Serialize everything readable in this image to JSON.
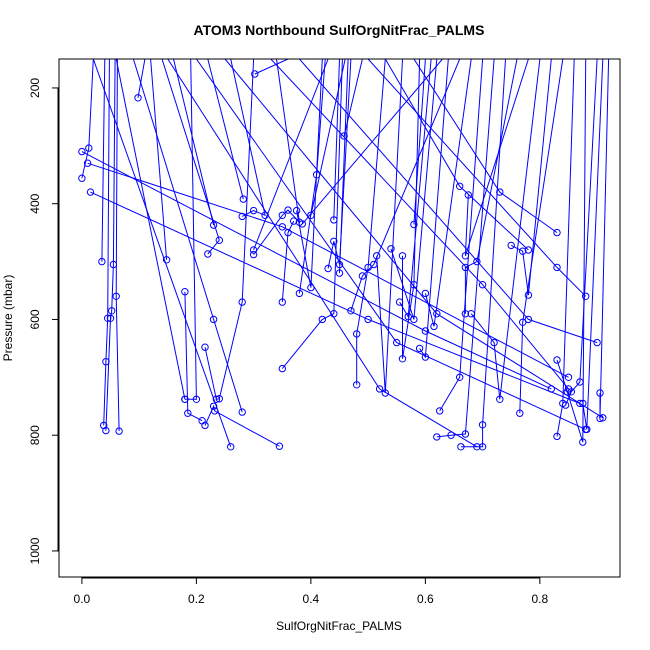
{
  "chart_data": {
    "type": "line",
    "title": "ATOM3 Northbound SulfOrgNitFrac_PALMS",
    "xlabel": "SulfOrgNitFrac_PALMS",
    "ylabel": "Pressure (mbar)",
    "xlim": [
      -0.04,
      0.94
    ],
    "ylim": [
      1045,
      150
    ],
    "y_reversed": true,
    "grid": false,
    "legend": "none",
    "x_ticks": [
      {
        "value": 0.0,
        "label": "0.0"
      },
      {
        "value": 0.2,
        "label": "0.2"
      },
      {
        "value": 0.4,
        "label": "0.4"
      },
      {
        "value": 0.6,
        "label": "0.6"
      },
      {
        "value": 0.8,
        "label": "0.8"
      }
    ],
    "y_ticks": [
      {
        "value": 200,
        "label": "200"
      },
      {
        "value": 400,
        "label": "400"
      },
      {
        "value": 600,
        "label": "600"
      },
      {
        "value": 800,
        "label": "800"
      },
      {
        "value": 1000,
        "label": "1000"
      }
    ],
    "color": "#0000ff",
    "series": [
      {
        "points": [
          [
            0.0,
            356
          ],
          [
            0.012,
            304
          ],
          [
            0.02,
            150
          ]
        ]
      },
      {
        "points": [
          [
            0.035,
            500
          ],
          [
            0.04,
            150
          ]
        ]
      },
      {
        "points": [
          [
            0.038,
            783
          ],
          [
            0.042,
            673
          ],
          [
            0.045,
            598
          ],
          [
            0.048,
            150
          ]
        ]
      },
      {
        "points": [
          [
            0.042,
            792
          ],
          [
            0.05,
            598
          ],
          [
            0.052,
            585
          ],
          [
            0.055,
            505
          ],
          [
            0.058,
            150
          ]
        ]
      },
      {
        "points": [
          [
            0.065,
            793
          ],
          [
            0.06,
            560
          ],
          [
            0.062,
            150
          ]
        ]
      },
      {
        "points": [
          [
            0.098,
            217
          ],
          [
            0.11,
            150
          ]
        ]
      },
      {
        "points": [
          [
            0.148,
            497
          ],
          [
            0.12,
            150
          ]
        ]
      },
      {
        "points": [
          [
            0.18,
            738
          ],
          [
            0.2,
            738
          ],
          [
            0.19,
            150
          ]
        ]
      },
      {
        "points": [
          [
            0.18,
            552
          ],
          [
            0.185,
            762
          ],
          [
            0.21,
            775
          ]
        ]
      },
      {
        "points": [
          [
            0.215,
            648
          ],
          [
            0.235,
            738
          ],
          [
            0.24,
            737
          ],
          [
            0.28,
            570
          ],
          [
            0.3,
            150
          ]
        ]
      },
      {
        "points": [
          [
            0.215,
            783
          ],
          [
            0.23,
            750
          ],
          [
            0.232,
            758
          ],
          [
            0.345,
            819
          ]
        ]
      },
      {
        "points": [
          [
            0.22,
            487
          ],
          [
            0.24,
            463
          ],
          [
            0.14,
            150
          ]
        ]
      },
      {
        "points": [
          [
            0.23,
            437
          ],
          [
            0.16,
            150
          ]
        ]
      },
      {
        "points": [
          [
            0.28,
            422
          ],
          [
            0.3,
            412
          ],
          [
            0.32,
            420
          ],
          [
            0.26,
            150
          ]
        ]
      },
      {
        "points": [
          [
            0.282,
            392
          ],
          [
            0.22,
            150
          ]
        ]
      },
      {
        "points": [
          [
            0.3,
            488
          ],
          [
            0.35,
            420
          ],
          [
            0.36,
            411
          ],
          [
            0.38,
            432
          ],
          [
            0.34,
            150
          ]
        ]
      },
      {
        "points": [
          [
            0.302,
            176
          ],
          [
            0.36,
            150
          ]
        ]
      },
      {
        "points": [
          [
            0.35,
            685
          ],
          [
            0.42,
            600
          ],
          [
            0.44,
            590
          ],
          [
            0.455,
            150
          ]
        ]
      },
      {
        "points": [
          [
            0.35,
            570
          ],
          [
            0.36,
            450
          ],
          [
            0.37,
            430
          ]
        ]
      },
      {
        "points": [
          [
            0.375,
            412
          ],
          [
            0.4,
            545
          ],
          [
            0.42,
            150
          ]
        ]
      },
      {
        "points": [
          [
            0.38,
            555
          ],
          [
            0.41,
            350
          ],
          [
            0.425,
            150
          ]
        ]
      },
      {
        "points": [
          [
            0.43,
            512
          ],
          [
            0.44,
            465
          ],
          [
            0.45,
            505
          ],
          [
            0.47,
            150
          ]
        ]
      },
      {
        "points": [
          [
            0.44,
            428
          ],
          [
            0.45,
            150
          ]
        ]
      },
      {
        "points": [
          [
            0.47,
            585
          ],
          [
            0.49,
            525
          ],
          [
            0.51,
            505
          ],
          [
            0.66,
            150
          ]
        ]
      },
      {
        "points": [
          [
            0.458,
            283
          ],
          [
            0.49,
            150
          ]
        ]
      },
      {
        "points": [
          [
            0.48,
            713
          ],
          [
            0.48,
            625
          ],
          [
            0.5,
            510
          ],
          [
            0.53,
            150
          ]
        ]
      },
      {
        "points": [
          [
            0.515,
            490
          ],
          [
            0.53,
            727
          ],
          [
            0.56,
            150
          ]
        ]
      },
      {
        "points": [
          [
            0.56,
            490
          ],
          [
            0.56,
            668
          ],
          [
            0.58,
            540
          ],
          [
            0.59,
            150
          ]
        ]
      },
      {
        "points": [
          [
            0.555,
            570
          ],
          [
            0.57,
            595
          ],
          [
            0.61,
            150
          ]
        ]
      },
      {
        "points": [
          [
            0.54,
            478
          ],
          [
            0.58,
            600
          ],
          [
            0.62,
            150
          ]
        ]
      },
      {
        "points": [
          [
            0.58,
            436
          ],
          [
            0.6,
            150
          ]
        ]
      },
      {
        "points": [
          [
            0.59,
            650
          ],
          [
            0.6,
            665
          ],
          [
            0.64,
            150
          ]
        ]
      },
      {
        "points": [
          [
            0.6,
            555
          ],
          [
            0.615,
            612
          ],
          [
            0.68,
            150
          ]
        ]
      },
      {
        "points": [
          [
            0.625,
            758
          ],
          [
            0.66,
            700
          ],
          [
            0.7,
            150
          ]
        ]
      },
      {
        "points": [
          [
            0.62,
            803
          ],
          [
            0.645,
            800
          ],
          [
            0.67,
            798
          ],
          [
            0.72,
            150
          ]
        ]
      },
      {
        "points": [
          [
            0.662,
            820
          ],
          [
            0.7,
            820
          ],
          [
            0.7,
            782
          ],
          [
            0.74,
            150
          ]
        ]
      },
      {
        "points": [
          [
            0.67,
            590
          ],
          [
            0.67,
            510
          ],
          [
            0.69,
            500
          ],
          [
            0.76,
            150
          ]
        ]
      },
      {
        "points": [
          [
            0.675,
            385
          ],
          [
            0.67,
            490
          ],
          [
            0.78,
            150
          ]
        ]
      },
      {
        "points": [
          [
            0.68,
            590
          ],
          [
            0.72,
            640
          ],
          [
            0.73,
            738
          ],
          [
            0.8,
            150
          ]
        ]
      },
      {
        "points": [
          [
            0.75,
            472
          ],
          [
            0.77,
            482
          ],
          [
            0.78,
            558
          ],
          [
            0.82,
            150
          ]
        ]
      },
      {
        "points": [
          [
            0.765,
            762
          ],
          [
            0.77,
            605
          ],
          [
            0.84,
            150
          ]
        ]
      },
      {
        "points": [
          [
            0.83,
            802
          ],
          [
            0.84,
            745
          ],
          [
            0.86,
            150
          ]
        ]
      },
      {
        "points": [
          [
            0.83,
            670
          ],
          [
            0.848,
            725
          ],
          [
            0.875,
            812
          ],
          [
            0.88,
            150
          ]
        ]
      },
      {
        "points": [
          [
            0.845,
            748
          ],
          [
            0.855,
            725
          ],
          [
            0.87,
            708
          ],
          [
            0.9,
            150
          ]
        ]
      },
      {
        "points": [
          [
            0.875,
            745
          ],
          [
            0.882,
            790
          ],
          [
            0.91,
            150
          ]
        ]
      },
      {
        "points": [
          [
            0.905,
            727
          ],
          [
            0.905,
            771
          ],
          [
            0.92,
            150
          ]
        ]
      },
      {
        "points": [
          [
            0.0,
            310
          ],
          [
            0.6,
            620
          ],
          [
            0.82,
            720
          ]
        ]
      },
      {
        "points": [
          [
            0.015,
            380
          ],
          [
            0.5,
            600
          ],
          [
            0.87,
            745
          ]
        ]
      },
      {
        "points": [
          [
            0.01,
            330
          ],
          [
            0.35,
            440
          ],
          [
            0.85,
            700
          ]
        ]
      },
      {
        "points": [
          [
            0.02,
            150
          ],
          [
            0.26,
            820
          ]
        ]
      },
      {
        "points": [
          [
            0.06,
            150
          ],
          [
            0.18,
            738
          ]
        ]
      },
      {
        "points": [
          [
            0.09,
            150
          ],
          [
            0.23,
            600
          ],
          [
            0.28,
            760
          ]
        ]
      },
      {
        "points": [
          [
            0.15,
            150
          ],
          [
            0.52,
            720
          ],
          [
            0.69,
            820
          ]
        ]
      },
      {
        "points": [
          [
            0.2,
            150
          ],
          [
            0.55,
            640
          ],
          [
            0.88,
            790
          ]
        ]
      },
      {
        "points": [
          [
            0.25,
            150
          ],
          [
            0.62,
            590
          ],
          [
            0.91,
            770
          ]
        ]
      },
      {
        "points": [
          [
            0.33,
            150
          ],
          [
            0.7,
            540
          ],
          [
            0.85,
            720
          ]
        ]
      },
      {
        "points": [
          [
            0.38,
            150
          ],
          [
            0.78,
            600
          ],
          [
            0.9,
            640
          ]
        ]
      },
      {
        "points": [
          [
            0.5,
            150
          ],
          [
            0.83,
            510
          ],
          [
            0.88,
            560
          ]
        ]
      },
      {
        "points": [
          [
            0.53,
            150
          ],
          [
            0.66,
            370
          ],
          [
            0.78,
            480
          ]
        ]
      },
      {
        "points": [
          [
            0.58,
            150
          ],
          [
            0.73,
            380
          ],
          [
            0.83,
            450
          ]
        ]
      },
      {
        "points": [
          [
            0.3,
            480
          ],
          [
            0.43,
            150
          ]
        ]
      },
      {
        "points": [
          [
            0.385,
            435
          ],
          [
            0.63,
            150
          ]
        ]
      },
      {
        "points": [
          [
            0.4,
            420
          ],
          [
            0.46,
            150
          ]
        ]
      },
      {
        "points": [
          [
            0.45,
            520
          ],
          [
            0.465,
            150
          ]
        ]
      }
    ]
  }
}
